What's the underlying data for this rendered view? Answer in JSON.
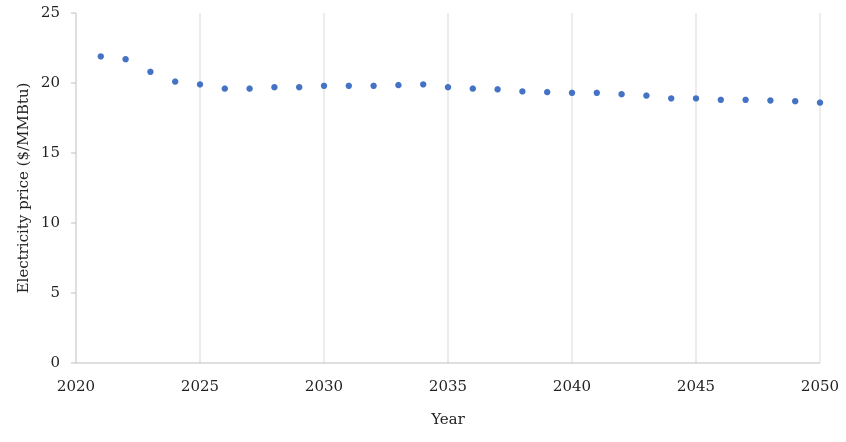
{
  "chart_data": {
    "type": "scatter",
    "xlabel": "Year",
    "ylabel": "Electricity price ($/MMBtu)",
    "x": [
      2021,
      2022,
      2023,
      2024,
      2025,
      2026,
      2027,
      2028,
      2029,
      2030,
      2031,
      2032,
      2033,
      2034,
      2035,
      2036,
      2037,
      2038,
      2039,
      2040,
      2041,
      2042,
      2043,
      2044,
      2045,
      2046,
      2047,
      2048,
      2049,
      2050
    ],
    "series": [
      {
        "color": "#4472c4",
        "values": [
          21.9,
          21.7,
          20.8,
          20.1,
          19.9,
          19.6,
          19.6,
          19.7,
          19.7,
          19.8,
          19.8,
          19.8,
          19.85,
          19.9,
          19.7,
          19.6,
          19.55,
          19.4,
          19.35,
          19.3,
          19.3,
          19.2,
          19.1,
          18.9,
          18.9,
          18.8,
          18.8,
          18.75,
          18.7,
          18.6
        ]
      }
    ],
    "xlim": [
      2020,
      2050
    ],
    "xticks": [
      2020,
      2025,
      2030,
      2035,
      2040,
      2045,
      2050
    ],
    "ylim": [
      0,
      25
    ],
    "yticks": [
      0,
      5,
      10,
      15,
      20,
      25
    ],
    "grid": "x"
  }
}
